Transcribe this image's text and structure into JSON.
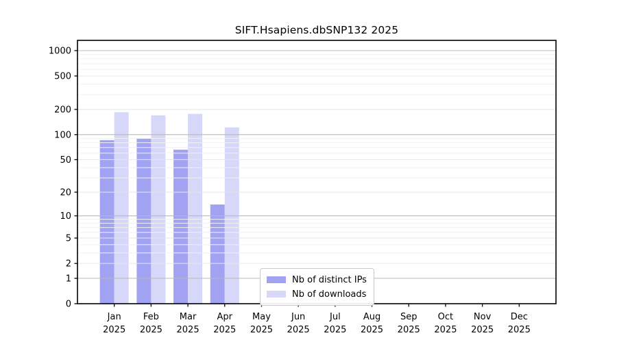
{
  "page": {
    "background": "#ffffff"
  },
  "chart_data": {
    "type": "bar",
    "title": "SIFT.Hsapiens.dbSNP132 2025",
    "categories": [
      "Jan",
      "Feb",
      "Mar",
      "Apr",
      "May",
      "Jun",
      "Jul",
      "Aug",
      "Sep",
      "Oct",
      "Nov",
      "Dec"
    ],
    "category_year": "2025",
    "series": [
      {
        "name": "Nb of distinct IPs",
        "color": "#a2a2f2",
        "values": [
          86,
          90,
          66,
          14,
          0,
          0,
          0,
          0,
          0,
          0,
          0,
          0
        ]
      },
      {
        "name": "Nb of downloads",
        "color": "#d7d7fa",
        "values": [
          185,
          170,
          177,
          122,
          0,
          0,
          0,
          0,
          0,
          0,
          0,
          0
        ]
      }
    ],
    "xlabel": "",
    "ylabel": "",
    "yscale": "log1p",
    "yticks": [
      0,
      1,
      2,
      5,
      10,
      20,
      50,
      100,
      200,
      500,
      1000
    ],
    "ylim": [
      0,
      1320
    ],
    "grid": true,
    "legend_position": "inside-bottom-center",
    "colors": {
      "axis": "#000000",
      "tick_label": "#000000",
      "grid_major": "#b9b9b9",
      "grid_mid": "#e6e6e6",
      "grid_minor": "#f1f1f1"
    }
  }
}
